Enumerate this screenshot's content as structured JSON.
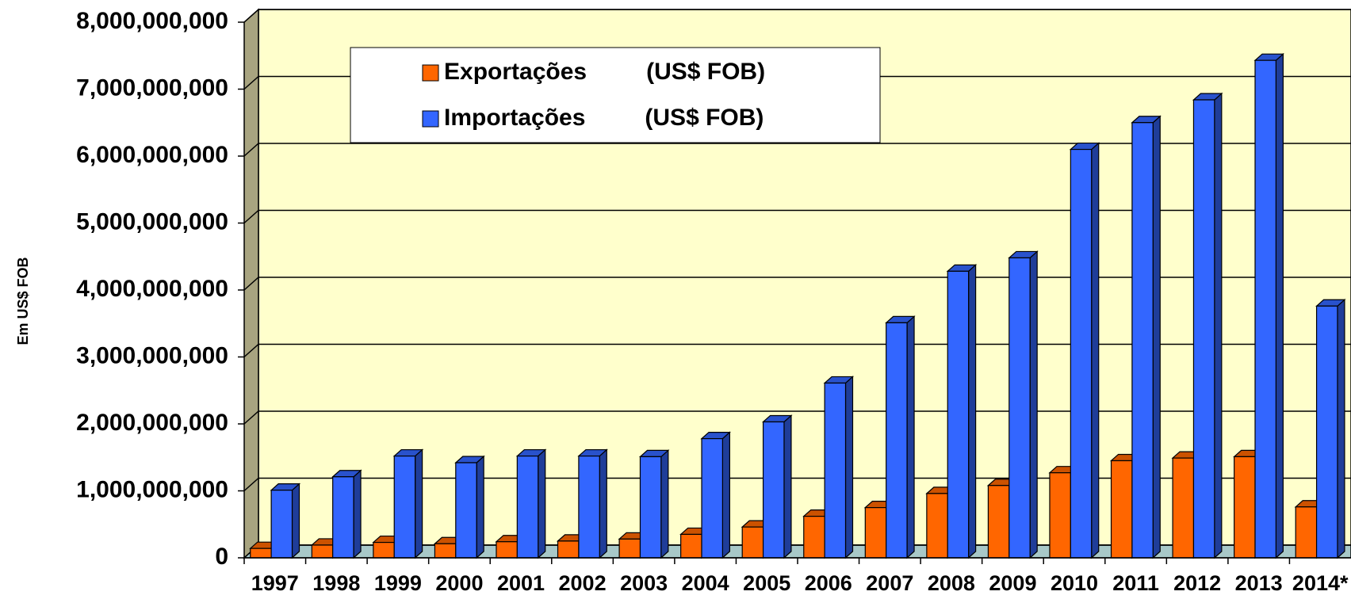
{
  "chart_data": {
    "type": "bar3d",
    "y_label": "Em US$ FOB",
    "categories": [
      "1997",
      "1998",
      "1999",
      "2000",
      "2001",
      "2002",
      "2003",
      "2004",
      "2005",
      "2006",
      "2007",
      "2008",
      "2009",
      "2010",
      "2011",
      "2012",
      "2013",
      "2014*"
    ],
    "series": [
      {
        "name": "Exportações         (US$ FOB)",
        "color": "#ff6600",
        "values": [
          140000000,
          190000000,
          230000000,
          210000000,
          240000000,
          250000000,
          280000000,
          350000000,
          460000000,
          620000000,
          750000000,
          960000000,
          1080000000,
          1270000000,
          1450000000,
          1490000000,
          1510000000,
          760000000
        ]
      },
      {
        "name": "Importações         (US$ FOB)",
        "color": "#3366ff",
        "values": [
          1010000000,
          1210000000,
          1520000000,
          1420000000,
          1520000000,
          1520000000,
          1510000000,
          1780000000,
          2030000000,
          2610000000,
          3510000000,
          4280000000,
          4480000000,
          6100000000,
          6500000000,
          6840000000,
          7430000000,
          3760000000
        ]
      }
    ],
    "ylim": [
      0,
      8000000000
    ],
    "yticks": [
      0,
      {
        "value": 1000000000,
        "label": "1,000,000,000"
      },
      {
        "value": 2000000000,
        "label": "2,000,000,000"
      },
      {
        "value": 3000000000,
        "label": "3,000,000,000"
      },
      {
        "value": 4000000000,
        "label": "4,000,000,000"
      },
      {
        "value": 5000000000,
        "label": "5,000,000,000"
      },
      {
        "value": 6000000000,
        "label": "6,000,000,000"
      },
      {
        "value": 7000000000,
        "label": "7,000,000,000"
      },
      {
        "value": 8000000000,
        "label": "8,000,000,000"
      }
    ],
    "grid": true
  }
}
